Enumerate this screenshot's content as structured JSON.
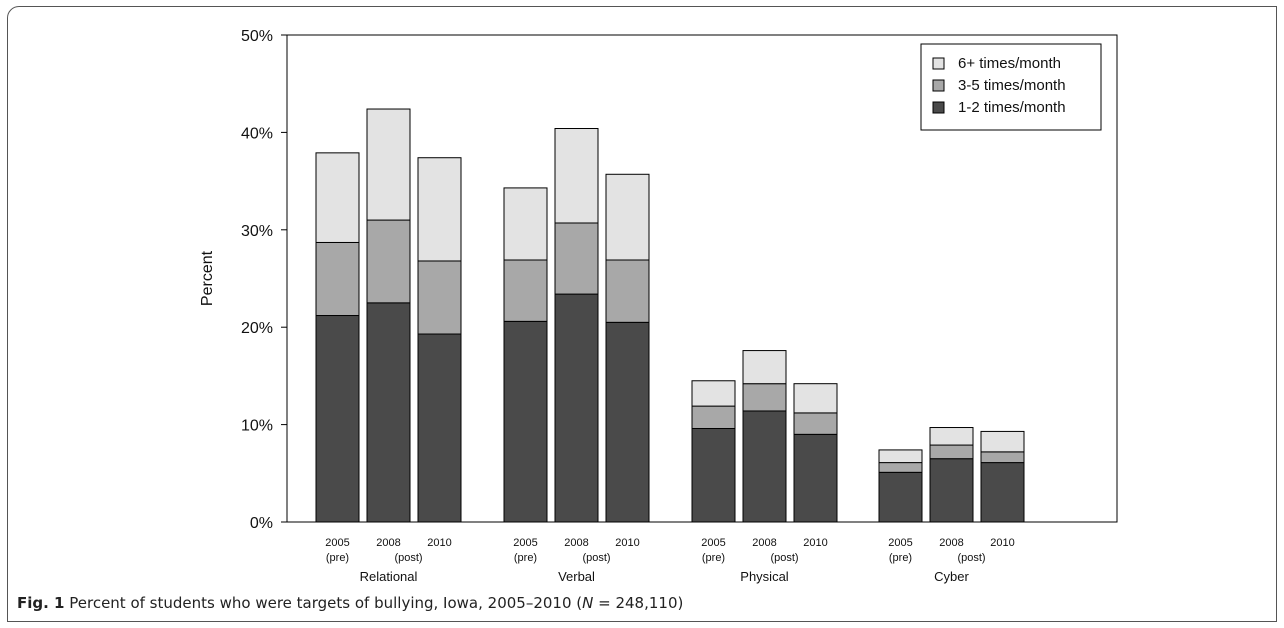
{
  "chart_data": {
    "type": "bar",
    "stacked": true,
    "ylabel": "Percent",
    "ylim": [
      0,
      50
    ],
    "yticks": [
      "0%",
      "10%",
      "20%",
      "30%",
      "40%",
      "50%"
    ],
    "grid": false,
    "legend_position": "top-right",
    "groups": [
      "Relational",
      "Verbal",
      "Physical",
      "Cyber"
    ],
    "bar_labels": [
      {
        "year": "2005",
        "tag": "(pre)"
      },
      {
        "year": "2008",
        "tag": "(post)"
      },
      {
        "year": "2010",
        "tag": ""
      }
    ],
    "series": [
      {
        "name": "1-2 times/month",
        "color": "#4a4a4a",
        "values": [
          [
            21.2,
            22.5,
            19.3
          ],
          [
            20.6,
            23.4,
            20.5
          ],
          [
            9.6,
            11.4,
            9.0
          ],
          [
            5.1,
            6.5,
            6.1
          ]
        ]
      },
      {
        "name": "3-5 times/month",
        "color": "#a8a8a8",
        "values": [
          [
            7.5,
            8.5,
            7.5
          ],
          [
            6.3,
            7.3,
            6.4
          ],
          [
            2.3,
            2.8,
            2.2
          ],
          [
            1.0,
            1.4,
            1.1
          ]
        ]
      },
      {
        "name": "6+ times/month",
        "color": "#e3e3e3",
        "values": [
          [
            9.2,
            11.4,
            10.6
          ],
          [
            7.4,
            9.7,
            8.8
          ],
          [
            2.6,
            3.4,
            3.0
          ],
          [
            1.3,
            1.8,
            2.1
          ]
        ]
      }
    ],
    "legend_order": [
      "6+ times/month",
      "3-5 times/month",
      "1-2 times/month"
    ]
  },
  "caption": {
    "label": "Fig. 1",
    "text_before": " Percent of students who were targets of bullying, Iowa, 2005–2010 (",
    "n_symbol": "N",
    "text_after": " = 248,110)"
  }
}
